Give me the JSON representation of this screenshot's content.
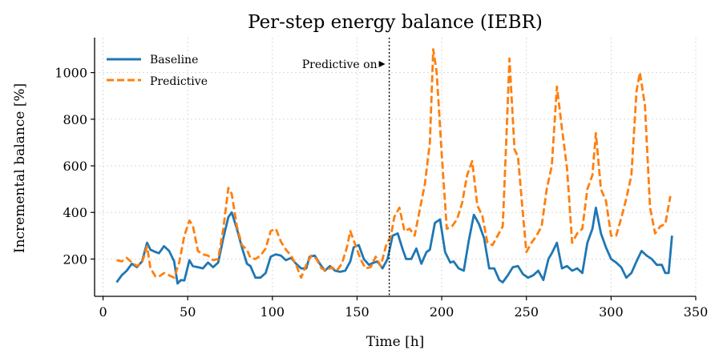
{
  "chart_data": {
    "type": "line",
    "title": "Per-step energy balance (IEBR)",
    "xlabel": "Time [h]",
    "ylabel": "Incremental balance [%]",
    "xlim": [
      -5,
      350
    ],
    "ylim": [
      40,
      1150
    ],
    "xticks": [
      0,
      50,
      100,
      150,
      200,
      250,
      300,
      350
    ],
    "yticks": [
      200,
      400,
      600,
      800,
      1000
    ],
    "grid": true,
    "legend": "top-left",
    "annotation": {
      "text": "Predictive on",
      "x": 169
    },
    "series": [
      {
        "name": "Baseline",
        "color": "#1f77b4",
        "style": "solid",
        "points": [
          [
            8,
            100
          ],
          [
            11,
            130
          ],
          [
            14,
            150
          ],
          [
            17,
            180
          ],
          [
            20,
            165
          ],
          [
            23,
            190
          ],
          [
            26,
            270
          ],
          [
            28,
            240
          ],
          [
            31,
            230
          ],
          [
            33,
            225
          ],
          [
            36,
            255
          ],
          [
            39,
            235
          ],
          [
            42,
            190
          ],
          [
            44,
            95
          ],
          [
            46,
            110
          ],
          [
            48,
            108
          ],
          [
            51,
            195
          ],
          [
            53,
            170
          ],
          [
            56,
            165
          ],
          [
            59,
            160
          ],
          [
            62,
            185
          ],
          [
            65,
            165
          ],
          [
            68,
            185
          ],
          [
            71,
            290
          ],
          [
            74,
            380
          ],
          [
            76,
            400
          ],
          [
            79,
            330
          ],
          [
            82,
            250
          ],
          [
            85,
            180
          ],
          [
            87,
            170
          ],
          [
            90,
            120
          ],
          [
            93,
            120
          ],
          [
            96,
            140
          ],
          [
            99,
            210
          ],
          [
            102,
            220
          ],
          [
            105,
            215
          ],
          [
            108,
            195
          ],
          [
            111,
            205
          ],
          [
            114,
            180
          ],
          [
            117,
            160
          ],
          [
            120,
            160
          ],
          [
            122,
            210
          ],
          [
            125,
            215
          ],
          [
            128,
            180
          ],
          [
            131,
            150
          ],
          [
            134,
            170
          ],
          [
            137,
            150
          ],
          [
            140,
            145
          ],
          [
            143,
            150
          ],
          [
            146,
            190
          ],
          [
            148,
            250
          ],
          [
            151,
            260
          ],
          [
            154,
            200
          ],
          [
            157,
            175
          ],
          [
            160,
            185
          ],
          [
            162,
            190
          ],
          [
            165,
            160
          ],
          [
            168,
            200
          ],
          [
            171,
            300
          ],
          [
            174,
            310
          ],
          [
            177,
            240
          ],
          [
            179,
            200
          ],
          [
            182,
            200
          ],
          [
            185,
            245
          ],
          [
            188,
            180
          ],
          [
            191,
            230
          ],
          [
            193,
            240
          ],
          [
            196,
            355
          ],
          [
            199,
            370
          ],
          [
            202,
            230
          ],
          [
            205,
            185
          ],
          [
            207,
            190
          ],
          [
            210,
            160
          ],
          [
            213,
            150
          ],
          [
            216,
            280
          ],
          [
            219,
            390
          ],
          [
            222,
            350
          ],
          [
            225,
            290
          ],
          [
            228,
            160
          ],
          [
            231,
            160
          ],
          [
            234,
            110
          ],
          [
            236,
            100
          ],
          [
            239,
            130
          ],
          [
            242,
            165
          ],
          [
            245,
            170
          ],
          [
            248,
            135
          ],
          [
            251,
            120
          ],
          [
            254,
            130
          ],
          [
            257,
            150
          ],
          [
            260,
            110
          ],
          [
            263,
            200
          ],
          [
            265,
            225
          ],
          [
            268,
            270
          ],
          [
            271,
            160
          ],
          [
            274,
            170
          ],
          [
            277,
            150
          ],
          [
            280,
            160
          ],
          [
            283,
            140
          ],
          [
            286,
            270
          ],
          [
            289,
            330
          ],
          [
            291,
            420
          ],
          [
            294,
            310
          ],
          [
            297,
            250
          ],
          [
            300,
            200
          ],
          [
            303,
            185
          ],
          [
            306,
            165
          ],
          [
            309,
            120
          ],
          [
            312,
            140
          ],
          [
            315,
            190
          ],
          [
            318,
            235
          ],
          [
            321,
            215
          ],
          [
            324,
            200
          ],
          [
            327,
            175
          ],
          [
            330,
            175
          ],
          [
            332,
            140
          ],
          [
            334,
            140
          ],
          [
            336,
            300
          ]
        ]
      },
      {
        "name": "Predictive",
        "color": "#ff7f0e",
        "style": "dashed",
        "points": [
          [
            8,
            195
          ],
          [
            11,
            190
          ],
          [
            14,
            205
          ],
          [
            17,
            185
          ],
          [
            20,
            170
          ],
          [
            23,
            185
          ],
          [
            26,
            255
          ],
          [
            28,
            160
          ],
          [
            31,
            125
          ],
          [
            33,
            125
          ],
          [
            36,
            140
          ],
          [
            39,
            130
          ],
          [
            42,
            120
          ],
          [
            45,
            185
          ],
          [
            48,
            300
          ],
          [
            51,
            365
          ],
          [
            53,
            345
          ],
          [
            56,
            235
          ],
          [
            59,
            220
          ],
          [
            62,
            215
          ],
          [
            65,
            195
          ],
          [
            68,
            200
          ],
          [
            71,
            330
          ],
          [
            74,
            505
          ],
          [
            76,
            480
          ],
          [
            79,
            340
          ],
          [
            82,
            260
          ],
          [
            85,
            240
          ],
          [
            87,
            205
          ],
          [
            90,
            200
          ],
          [
            93,
            215
          ],
          [
            96,
            245
          ],
          [
            99,
            320
          ],
          [
            102,
            330
          ],
          [
            105,
            275
          ],
          [
            108,
            240
          ],
          [
            111,
            215
          ],
          [
            114,
            175
          ],
          [
            117,
            120
          ],
          [
            120,
            175
          ],
          [
            123,
            215
          ],
          [
            126,
            200
          ],
          [
            129,
            160
          ],
          [
            132,
            150
          ],
          [
            135,
            165
          ],
          [
            138,
            150
          ],
          [
            141,
            180
          ],
          [
            144,
            250
          ],
          [
            146,
            320
          ],
          [
            149,
            260
          ],
          [
            152,
            200
          ],
          [
            155,
            160
          ],
          [
            158,
            165
          ],
          [
            161,
            210
          ],
          [
            164,
            170
          ],
          [
            167,
            255
          ],
          [
            170,
            300
          ],
          [
            172,
            380
          ],
          [
            175,
            420
          ],
          [
            178,
            320
          ],
          [
            181,
            330
          ],
          [
            184,
            300
          ],
          [
            187,
            410
          ],
          [
            190,
            520
          ],
          [
            193,
            700
          ],
          [
            195,
            1100
          ],
          [
            197,
            1000
          ],
          [
            200,
            650
          ],
          [
            203,
            330
          ],
          [
            206,
            340
          ],
          [
            209,
            370
          ],
          [
            212,
            440
          ],
          [
            215,
            560
          ],
          [
            218,
            620
          ],
          [
            221,
            430
          ],
          [
            224,
            385
          ],
          [
            227,
            270
          ],
          [
            230,
            260
          ],
          [
            233,
            300
          ],
          [
            236,
            340
          ],
          [
            238,
            690
          ],
          [
            240,
            1060
          ],
          [
            243,
            670
          ],
          [
            245,
            640
          ],
          [
            248,
            390
          ],
          [
            250,
            230
          ],
          [
            253,
            270
          ],
          [
            256,
            300
          ],
          [
            259,
            340
          ],
          [
            262,
            500
          ],
          [
            265,
            600
          ],
          [
            268,
            940
          ],
          [
            271,
            760
          ],
          [
            274,
            590
          ],
          [
            277,
            270
          ],
          [
            280,
            310
          ],
          [
            283,
            330
          ],
          [
            286,
            500
          ],
          [
            289,
            560
          ],
          [
            291,
            740
          ],
          [
            294,
            500
          ],
          [
            297,
            450
          ],
          [
            300,
            300
          ],
          [
            303,
            300
          ],
          [
            306,
            375
          ],
          [
            309,
            460
          ],
          [
            312,
            560
          ],
          [
            315,
            920
          ],
          [
            317,
            1000
          ],
          [
            320,
            860
          ],
          [
            323,
            420
          ],
          [
            326,
            310
          ],
          [
            329,
            340
          ],
          [
            332,
            350
          ],
          [
            335,
            470
          ]
        ]
      }
    ]
  }
}
